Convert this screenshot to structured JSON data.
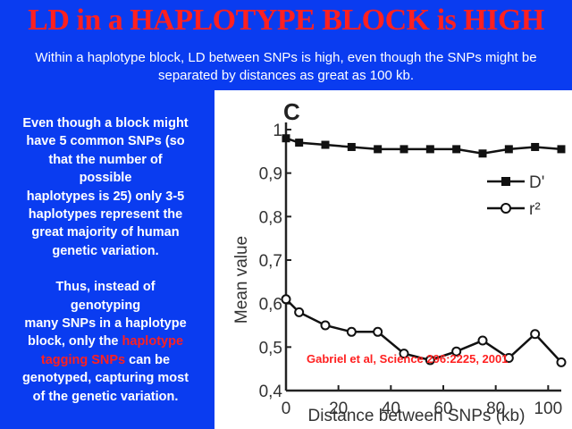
{
  "title": "LD in a HAPLOTYPE BLOCK is HIGH",
  "subtitle": "Within a haplotype block, LD between SNPs is high, even though the SNPs might be separated by distances as great as 100 kb.",
  "left_text": {
    "para1": [
      "Even though a block might",
      "have 5 common SNPs (so",
      "that the number of",
      "possible",
      "haplotypes is 25) only 3-5",
      "haplotypes represent the",
      "great majority of human",
      "genetic variation."
    ],
    "para2_lines": [
      "Thus, instead of",
      "genotyping",
      "many SNPs in a haplotype"
    ],
    "para2_block_prefix": "block, only the ",
    "para2_highlight_1": "haplotype",
    "para2_highlight_2": "tagging SNPs",
    "para2_suffix": " can be",
    "para2_end": [
      "genotyped, capturing most",
      "of the genetic variation."
    ]
  },
  "citation": "Gabriel et al, Science 296:2225, 2001",
  "colors": {
    "background": "#0a3cf0",
    "title": "#ff2020",
    "text": "#ffffff",
    "highlight": "#ff2020",
    "citation": "#ff2020"
  },
  "chart_data": {
    "type": "line",
    "panel_label": "C",
    "xlabel": "Distance between SNPs (kb)",
    "ylabel": "Mean value",
    "xlim": [
      0,
      105
    ],
    "ylim": [
      0.4,
      1.0
    ],
    "x_ticks": [
      0,
      20,
      40,
      60,
      80,
      100
    ],
    "y_ticks": [
      0.4,
      0.5,
      0.6,
      0.7,
      0.8,
      0.9,
      1.0
    ],
    "y_tick_labels": [
      "0,4",
      "0,5",
      "0,6",
      "0,7",
      "0,8",
      "0,9",
      "1"
    ],
    "legend_position": "right",
    "series": [
      {
        "name": "D'",
        "marker": "filled-square",
        "x": [
          0,
          5,
          15,
          25,
          35,
          45,
          55,
          65,
          75,
          85,
          95,
          105
        ],
        "y": [
          0.98,
          0.97,
          0.965,
          0.96,
          0.955,
          0.955,
          0.955,
          0.955,
          0.945,
          0.955,
          0.96,
          0.955
        ]
      },
      {
        "name": "r²",
        "marker": "open-circle",
        "x": [
          0,
          5,
          15,
          25,
          35,
          45,
          55,
          65,
          75,
          85,
          95,
          105
        ],
        "y": [
          0.61,
          0.58,
          0.55,
          0.535,
          0.535,
          0.485,
          0.47,
          0.49,
          0.515,
          0.475,
          0.53,
          0.465
        ]
      }
    ]
  }
}
